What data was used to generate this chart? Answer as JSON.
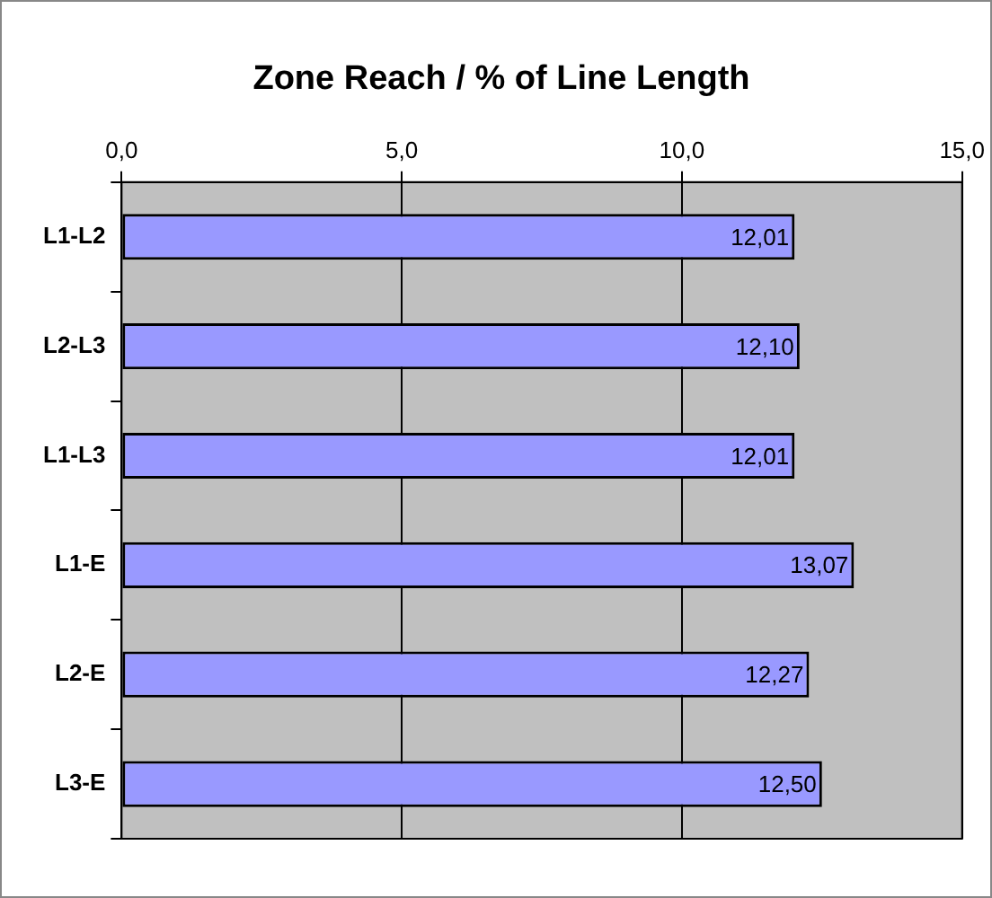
{
  "chart_data": {
    "type": "bar",
    "orientation": "horizontal",
    "title": "Zone Reach / % of Line Length",
    "categories": [
      "L1-L2",
      "L2-L3",
      "L1-L3",
      "L1-E",
      "L2-E",
      "L3-E"
    ],
    "values": [
      12.01,
      12.1,
      12.01,
      13.07,
      12.27,
      12.5
    ],
    "value_labels": [
      "12,01",
      "12,10",
      "12,01",
      "13,07",
      "12,27",
      "12,50"
    ],
    "color": "#9999ff",
    "xlim": [
      0,
      15
    ],
    "xticks": [
      {
        "value": 0,
        "label": "0,0"
      },
      {
        "value": 5,
        "label": "5,0"
      },
      {
        "value": 10,
        "label": "10,0"
      },
      {
        "value": 15,
        "label": "15,0"
      }
    ],
    "grid": "x",
    "legend": false
  }
}
